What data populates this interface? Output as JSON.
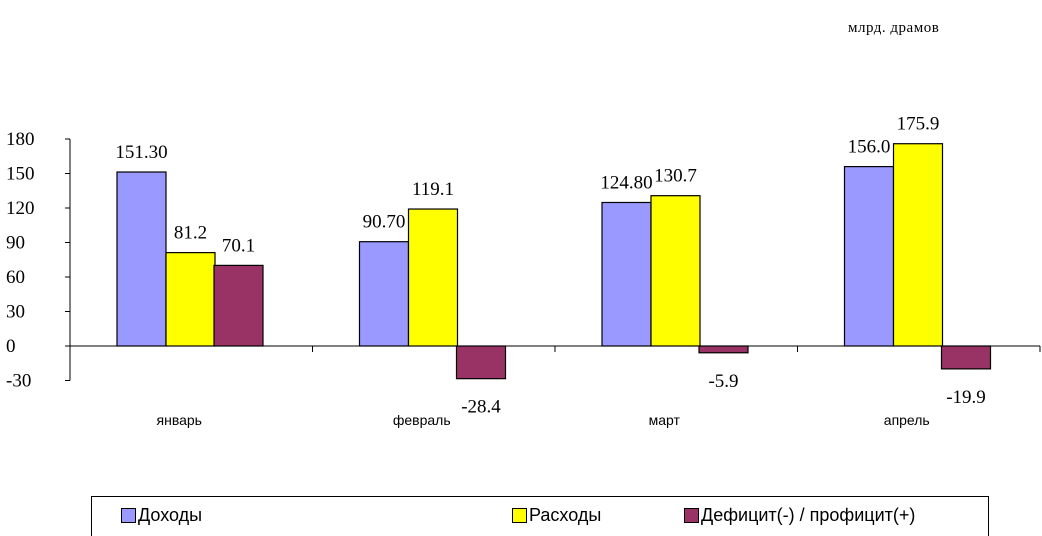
{
  "unit_label": "млрд.  драмов",
  "colors": {
    "income": "#9999ff",
    "expense": "#ffff00",
    "balance": "#993366"
  },
  "chart_data": {
    "type": "bar",
    "categories": [
      "январь",
      "февраль",
      "март",
      "апрель"
    ],
    "series": [
      {
        "name": "Доходы",
        "values": [
          151.3,
          90.7,
          124.8,
          156.0
        ],
        "labels": [
          "151.30",
          "90.70",
          "124.80",
          "156.0"
        ]
      },
      {
        "name": "Расходы",
        "values": [
          81.2,
          119.1,
          130.7,
          175.9
        ],
        "labels": [
          "81.2",
          "119.1",
          "130.7",
          "175.9"
        ]
      },
      {
        "name": "Дефицит(-) / профицит(+)",
        "values": [
          70.1,
          -28.4,
          -5.9,
          -19.9
        ],
        "labels": [
          "70.1",
          "-28.4",
          "-5.9",
          "-19.9"
        ]
      }
    ],
    "ylim": [
      -30,
      180
    ],
    "yticks": [
      "180",
      "150",
      "120",
      "90",
      "60",
      "30",
      "0",
      "-30"
    ],
    "legend": "bottom"
  }
}
